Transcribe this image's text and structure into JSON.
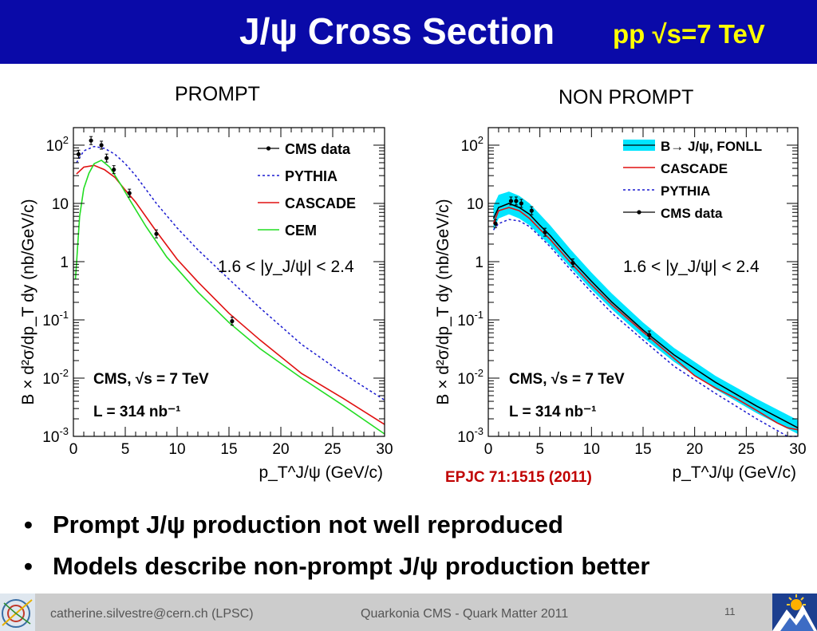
{
  "header": {
    "title": "J/ψ Cross Section",
    "energy": "pp √s=7 TeV"
  },
  "reference": "EPJC 71:1515 (2011)",
  "bullets": [
    "Prompt J/ψ production not well reproduced",
    "Models describe non-prompt J/ψ production better"
  ],
  "footer": {
    "email": "catherine.silvestre@cern.ch (LPSC)",
    "conference": "Quarkonia CMS - Quark Matter 2011",
    "page": "11"
  },
  "chart_data": [
    {
      "type": "line",
      "panel_title": "PROMPT",
      "ylabel": "B × d²σ/dp_T dy (nb/GeV/c)",
      "xlabel": "p_T^J/ψ (GeV/c)",
      "xlim": [
        0,
        30
      ],
      "ylim": [
        0.001,
        200
      ],
      "yscale": "log",
      "xticks": [
        "0",
        "5",
        "10",
        "15",
        "20",
        "25",
        "30"
      ],
      "rapidity_label": "1.6 < |y_J/ψ| < 2.4",
      "experiment_label": "CMS, √s = 7 TeV",
      "lumi_label": "L = 314 nb⁻¹",
      "legend": [
        "CMS data",
        "PYTHIA",
        "CASCADE",
        "CEM"
      ],
      "legend_position": "top-right",
      "colors": {
        "data": "#000000",
        "pythia": "#1a1ad0",
        "cascade": "#e01010",
        "cem": "#22dd22"
      },
      "series": [
        {
          "name": "CMS data",
          "kind": "points",
          "x": [
            0.5,
            1.7,
            2.7,
            3.2,
            3.9,
            5.4,
            8.0,
            15.3
          ],
          "y": [
            70,
            120,
            100,
            60,
            38,
            15,
            3.0,
            0.095
          ]
        },
        {
          "name": "PYTHIA",
          "kind": "dashed",
          "x": [
            0.3,
            1,
            2,
            3,
            4,
            5,
            6,
            8,
            10,
            12,
            15,
            18,
            22,
            26,
            30
          ],
          "y": [
            50,
            80,
            95,
            88,
            70,
            48,
            30,
            10,
            3.8,
            1.6,
            0.5,
            0.16,
            0.038,
            0.012,
            0.0042
          ]
        },
        {
          "name": "CASCADE",
          "kind": "line",
          "x": [
            0.3,
            1,
            2,
            3,
            4,
            5,
            6,
            8,
            10,
            12,
            15,
            18,
            22,
            26,
            30
          ],
          "y": [
            32,
            42,
            45,
            38,
            28,
            17,
            10.5,
            3.3,
            1.1,
            0.45,
            0.13,
            0.045,
            0.012,
            0.0045,
            0.0016
          ]
        },
        {
          "name": "CEM",
          "kind": "line",
          "x": [
            0.2,
            0.6,
            1,
            1.5,
            2,
            2.7,
            3.5,
            4.5,
            5.5,
            7,
            9,
            12,
            15,
            18,
            22,
            26,
            30
          ],
          "y": [
            0.5,
            6,
            18,
            33,
            48,
            55,
            42,
            22,
            11,
            4.0,
            1.2,
            0.3,
            0.09,
            0.032,
            0.01,
            0.0034,
            0.0011
          ]
        }
      ]
    },
    {
      "type": "line",
      "panel_title": "NON PROMPT",
      "ylabel": "B × d²σ/dp_T dy (nb/GeV/c)",
      "xlabel": "p_T^J/ψ (GeV/c)",
      "xlim": [
        0,
        30
      ],
      "ylim": [
        0.001,
        200
      ],
      "yscale": "log",
      "xticks": [
        "0",
        "5",
        "10",
        "15",
        "20",
        "25",
        "30"
      ],
      "rapidity_label": "1.6 < |y_J/ψ| < 2.4",
      "experiment_label": "CMS, √s = 7 TeV",
      "lumi_label": "L = 314 nb⁻¹",
      "legend": [
        "B→ J/ψ, FONLL",
        "CASCADE",
        "PYTHIA",
        "CMS data"
      ],
      "legend_position": "top-right",
      "colors": {
        "band": "#00e5ff",
        "data": "#000000",
        "pythia": "#1a1ad0",
        "cascade": "#e01010"
      },
      "series": [
        {
          "name": "B→ J/ψ, FONLL",
          "kind": "band",
          "x": [
            0.5,
            1,
            2,
            3,
            4,
            5,
            6,
            8,
            10,
            12,
            15,
            18,
            22,
            26,
            30
          ],
          "y_low": [
            3.5,
            5.5,
            6.5,
            5.5,
            4.2,
            2.8,
            1.9,
            0.78,
            0.33,
            0.15,
            0.05,
            0.019,
            0.0065,
            0.0025,
            0.0011
          ],
          "y_high": [
            9,
            14,
            16,
            13.5,
            10,
            6.5,
            4.2,
            1.6,
            0.65,
            0.28,
            0.09,
            0.033,
            0.011,
            0.0044,
            0.0019
          ]
        },
        {
          "name": "CMS data",
          "kind": "points",
          "x": [
            0.7,
            2.2,
            2.7,
            3.2,
            4.2,
            5.5,
            8.2,
            15.6
          ],
          "y": [
            4.5,
            11,
            11,
            10,
            7.5,
            3.2,
            0.95,
            0.055
          ]
        },
        {
          "name": "PYTHIA",
          "kind": "dashed",
          "x": [
            0.5,
            1,
            2,
            3,
            4,
            5,
            6,
            8,
            10,
            12,
            15,
            18,
            22,
            26,
            29,
            30
          ],
          "y": [
            3.5,
            4.5,
            5.3,
            5.0,
            4.0,
            2.7,
            1.8,
            0.72,
            0.3,
            0.13,
            0.045,
            0.016,
            0.0055,
            0.002,
            0.001,
            0.001
          ]
        },
        {
          "name": "CASCADE",
          "kind": "line",
          "x": [
            0.5,
            1,
            2,
            3,
            4,
            5,
            6,
            8,
            10,
            12,
            15,
            18,
            20,
            22,
            24,
            26,
            28,
            29,
            30
          ],
          "y": [
            4.5,
            7.5,
            8.5,
            7.5,
            5.5,
            3.6,
            2.4,
            0.95,
            0.4,
            0.18,
            0.062,
            0.022,
            0.011,
            0.0068,
            0.0045,
            0.0028,
            0.0017,
            0.0014,
            0.0013
          ]
        },
        {
          "name": "FONLL central",
          "kind": "line-black",
          "x": [
            0.5,
            1,
            2,
            3,
            4,
            5,
            6,
            8,
            10,
            12,
            15,
            18,
            22,
            26,
            30
          ],
          "y": [
            5.5,
            8.5,
            10,
            8.5,
            6.5,
            4.2,
            2.8,
            1.1,
            0.46,
            0.2,
            0.067,
            0.025,
            0.0085,
            0.0033,
            0.0014
          ]
        }
      ]
    }
  ]
}
